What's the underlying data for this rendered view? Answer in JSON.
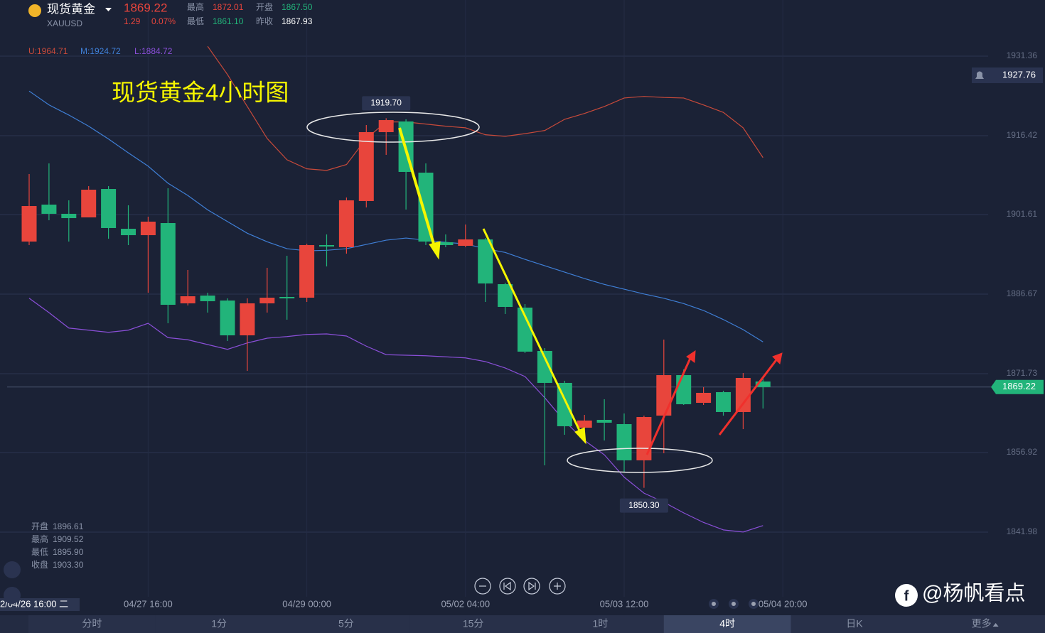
{
  "header": {
    "name": "现货黄金",
    "symbol": "XAUUSD",
    "price": "1869.22",
    "change": "1.29",
    "change_pct": "0.07%",
    "stats": [
      [
        "最高",
        "1872.01"
      ],
      [
        "开盘",
        "1867.50"
      ],
      [
        "最低",
        "1861.10"
      ],
      [
        "昨收",
        "1867.93"
      ]
    ]
  },
  "chart_data": {
    "type": "candlestick",
    "title": "现货黄金4小时图",
    "categories": [
      "2/04/26 16:00 二",
      null,
      null,
      null,
      null,
      null,
      "04/27 16:00",
      null,
      null,
      null,
      null,
      null,
      null,
      null,
      "04/29 00:00",
      null,
      null,
      null,
      null,
      null,
      null,
      null,
      "05/02 04:00",
      null,
      null,
      null,
      null,
      null,
      null,
      null,
      "05/03 12:00",
      null,
      null,
      null,
      null,
      null,
      null,
      null,
      "05/04 20:00"
    ],
    "open": [
      1896.54,
      1903.48,
      1901.75,
      1901.08,
      1906.41,
      1898.94,
      1897.74,
      1900.01,
      1884.94,
      1886.4,
      1885.47,
      1878.93,
      1884.94,
      1886.14,
      1886.0,
      1895.88,
      1895.48,
      1904.15,
      1917.09,
      1919.09,
      1909.48,
      1896.41,
      1895.74,
      1896.94,
      1888.54,
      1884.14,
      1876.0,
      1870.0,
      1861.59,
      1863.06,
      1862.26,
      1855.46,
      1863.86,
      1871.46,
      1866.26,
      1868.26,
      1864.53,
      1870.26,
      null
    ],
    "high": [
      1909.22,
      1911.22,
      1904.28,
      1906.95,
      1906.95,
      1903.35,
      1901.21,
      1906.55,
      1891.21,
      1886.94,
      1885.87,
      1885.87,
      1891.61,
      1893.87,
      1896.14,
      1897.88,
      1904.81,
      1918.42,
      1919.7,
      1919.5,
      1911.22,
      1897.88,
      1899.74,
      1897.21,
      1888.81,
      1884.8,
      1876.53,
      1870.4,
      1863.99,
      1866.93,
      1864.26,
      1863.86,
      1878.13,
      1872.53,
      1869.2,
      1868.53,
      1871.86,
      1871.2,
      null
    ],
    "low": [
      1895.88,
      1900.54,
      1896.54,
      1901.08,
      1897.08,
      1895.88,
      1886.94,
      1881.2,
      1884.54,
      1883.2,
      1877.87,
      1872.26,
      1883.2,
      1881.87,
      1885.2,
      1891.87,
      1894.27,
      1902.95,
      1912.82,
      1902.55,
      1895.88,
      1895.48,
      1895.48,
      1885.2,
      1882.94,
      1875.6,
      1854.52,
      1860.26,
      1859.86,
      1859.19,
      1853.19,
      1850.3,
      1856.79,
      1865.86,
      1865.86,
      1863.86,
      1861.32,
      1865.19,
      null
    ],
    "close": [
      1903.21,
      1901.75,
      1900.94,
      1906.28,
      1899.08,
      1897.74,
      1900.28,
      1884.67,
      1886.27,
      1885.34,
      1878.93,
      1884.94,
      1886.0,
      1885.87,
      1895.88,
      1895.61,
      1904.28,
      1917.09,
      1919.35,
      1909.62,
      1896.54,
      1895.88,
      1896.94,
      1888.67,
      1884.27,
      1875.87,
      1870.0,
      1861.86,
      1862.93,
      1862.53,
      1855.46,
      1863.59,
      1871.46,
      1865.99,
      1868.13,
      1864.53,
      1870.93,
      1869.22,
      null
    ],
    "up_color": "#e8453c",
    "down_color": "#22b47a",
    "bands": [
      {
        "name": "U:1964.71",
        "color": "#c84a3a",
        "values": [
          null,
          null,
          null,
          null,
          null,
          null,
          null,
          null,
          null,
          1933.2,
          1927.9,
          1921.9,
          1915.9,
          1911.9,
          1910.2,
          1909.9,
          1911.0,
          1915.9,
          1919.0,
          1919.0,
          1918.6,
          1918.2,
          1917.9,
          1916.6,
          1916.3,
          1916.8,
          1917.4,
          1919.5,
          1920.6,
          1921.9,
          1923.5,
          1923.8,
          1923.6,
          1923.5,
          1922.2,
          1920.8,
          1917.9,
          1912.3,
          null
        ]
      },
      {
        "name": "M:1924.72",
        "color": "#3f7fd6",
        "values": [
          1924.8,
          1922.2,
          1920.3,
          1918.2,
          1915.8,
          1913.2,
          1910.7,
          1907.5,
          1905.2,
          1902.5,
          1900.3,
          1898.1,
          1896.5,
          1895.2,
          1894.8,
          1894.9,
          1895.2,
          1896.0,
          1896.8,
          1897.2,
          1896.8,
          1896.4,
          1896.1,
          1895.2,
          1894.5,
          1893.2,
          1892.0,
          1890.8,
          1889.6,
          1888.5,
          1887.6,
          1886.7,
          1885.9,
          1884.9,
          1883.6,
          1881.9,
          1880.0,
          1877.7,
          null
        ]
      },
      {
        "name": "L:1884.72",
        "color": "#8a4fd8",
        "values": [
          1885.9,
          1883.2,
          1880.3,
          1879.9,
          1879.5,
          1879.9,
          1881.2,
          1878.5,
          1878.1,
          1877.2,
          1876.3,
          1877.5,
          1878.4,
          1878.7,
          1879.1,
          1879.2,
          1878.8,
          1876.9,
          1875.3,
          1875.2,
          1875.1,
          1874.9,
          1874.7,
          1874.0,
          1872.8,
          1871.2,
          1867.2,
          1862.8,
          1859.2,
          1856.5,
          1852.3,
          1849.3,
          1847.6,
          1845.6,
          1843.8,
          1842.4,
          1842.0,
          1843.2,
          null
        ]
      }
    ],
    "ylim": [
      1829.84,
      1941.9
    ],
    "yticks": [
      1931.36,
      1916.42,
      1901.61,
      1886.67,
      1871.73,
      1856.92,
      1841.98
    ],
    "last_price": 1869.22,
    "alert_price": 1927.76,
    "max_label": "1919.70",
    "min_label": "1850.30",
    "grid": true
  },
  "ohlc_info": [
    [
      "开盘",
      "1896.61"
    ],
    [
      "最高",
      "1909.52"
    ],
    [
      "最低",
      "1895.90"
    ],
    [
      "收盘",
      "1903.30"
    ]
  ],
  "tabs": [
    "分时",
    "1分",
    "5分",
    "15分",
    "1时",
    "4时",
    "日K",
    "更多"
  ],
  "active_tab": 5,
  "watermark": "@杨帆看点"
}
